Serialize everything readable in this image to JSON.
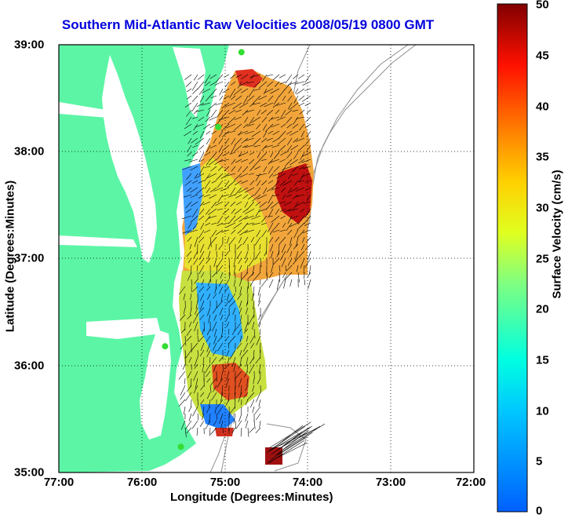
{
  "title": "Southern Mid-Atlantic Raw Velocities 2008/05/19 0800 GMT",
  "axes": {
    "xlabel": "Longitude (Degrees:Minutes)",
    "ylabel": "Latitude (Degrees:Minutes)",
    "x_ticks": [
      "77:00",
      "76:00",
      "75:00",
      "74:00",
      "73:00",
      "72:00"
    ],
    "y_ticks": [
      "39:00",
      "38:00",
      "37:00",
      "36:00",
      "35:00"
    ],
    "xlim": [
      -77,
      -72
    ],
    "ylim": [
      35,
      39
    ],
    "grid": "dotted"
  },
  "colorbar": {
    "label": "Surface Velocity (cm/s)",
    "ticks": [
      "50",
      "45",
      "40",
      "35",
      "30",
      "25",
      "20",
      "15",
      "10",
      "5",
      "0"
    ],
    "range": [
      0,
      50
    ],
    "colormap": "jet"
  },
  "colors": {
    "land": "#5cf5a6",
    "title": "#0000dd",
    "station": "#33dd33",
    "bathymetry": "#909090"
  },
  "stations": [
    {
      "lon": -74.8,
      "lat": 38.93
    },
    {
      "lon": -75.08,
      "lat": 38.23
    },
    {
      "lon": -75.72,
      "lat": 36.18
    },
    {
      "lon": -75.53,
      "lat": 35.24
    }
  ]
}
